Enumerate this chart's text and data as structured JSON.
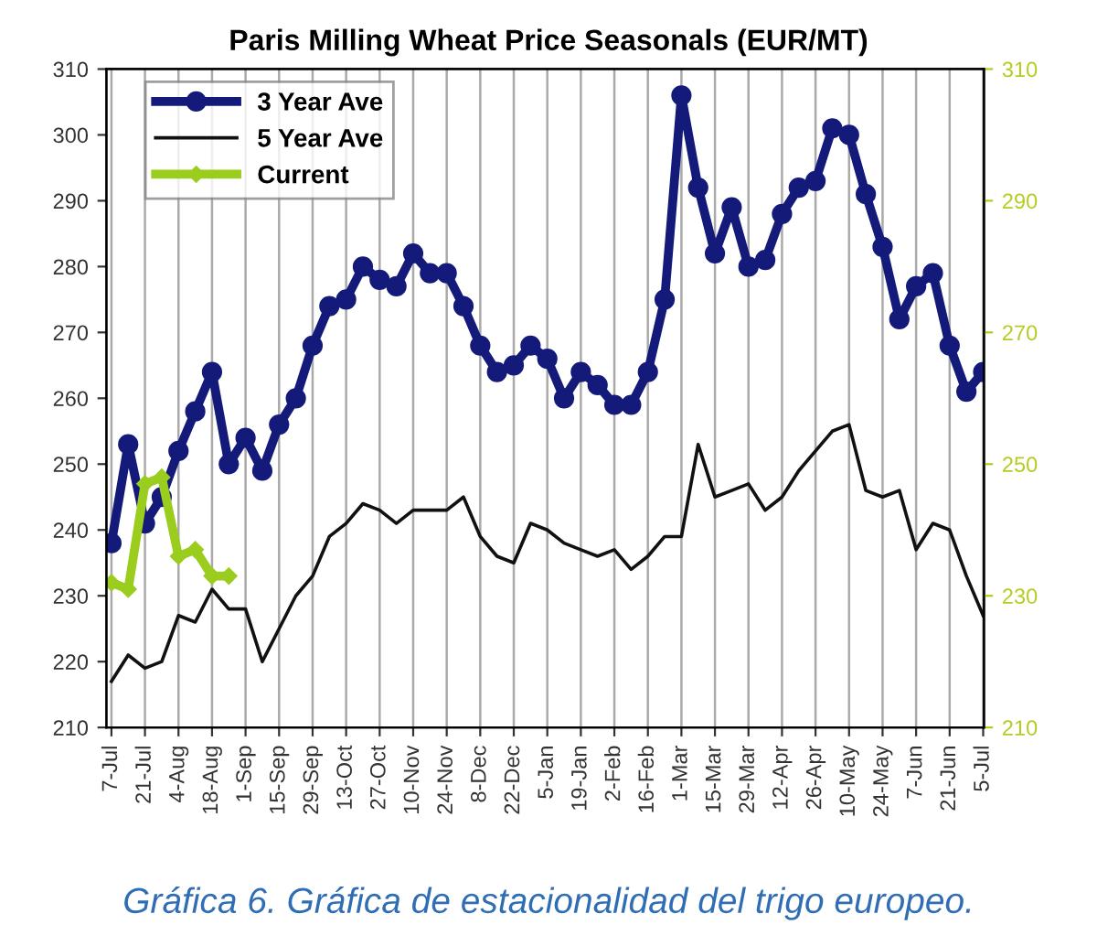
{
  "chart_data": {
    "type": "line",
    "title": "Paris Milling Wheat Price Seasonals (EUR/MT)",
    "categories": [
      "7-Jul",
      null,
      "21-Jul",
      null,
      "4-Aug",
      null,
      "18-Aug",
      null,
      "1-Sep",
      null,
      "15-Sep",
      null,
      "29-Sep",
      null,
      "13-Oct",
      null,
      "27-Oct",
      null,
      "10-Nov",
      null,
      "24-Nov",
      null,
      "8-Dec",
      null,
      "22-Dec",
      null,
      "5-Jan",
      null,
      "19-Jan",
      null,
      "2-Feb",
      null,
      "16-Feb",
      null,
      "1-Mar",
      null,
      "15-Mar",
      null,
      "29-Mar",
      null,
      "12-Apr",
      null,
      "26-Apr",
      null,
      "10-May",
      null,
      "24-May",
      null,
      "7-Jun",
      null,
      "21-Jun",
      null,
      "5-Jul"
    ],
    "series": [
      {
        "name": "3 Year Ave",
        "color": "#141a7a",
        "marker": "circle",
        "values": [
          238,
          253,
          241,
          245,
          252,
          258,
          264,
          250,
          254,
          249,
          256,
          260,
          268,
          274,
          275,
          280,
          278,
          277,
          282,
          279,
          279,
          274,
          268,
          264,
          265,
          268,
          266,
          260,
          264,
          262,
          259,
          259,
          264,
          275,
          306,
          292,
          282,
          289,
          280,
          281,
          288,
          292,
          293,
          301,
          300,
          291,
          283,
          272,
          277,
          279,
          268,
          261,
          264
        ]
      },
      {
        "name": "5 Year Ave",
        "color": "#111111",
        "marker": "none",
        "values": [
          217,
          221,
          219,
          220,
          227,
          226,
          231,
          228,
          228,
          220,
          225,
          230,
          233,
          239,
          241,
          244,
          243,
          241,
          243,
          243,
          243,
          245,
          239,
          236,
          235,
          241,
          240,
          238,
          237,
          236,
          237,
          234,
          236,
          239,
          239,
          253,
          245,
          246,
          247,
          243,
          245,
          249,
          252,
          255,
          256,
          246,
          245,
          246,
          237,
          241,
          240,
          233,
          227
        ]
      },
      {
        "name": "Current",
        "color": "#9acd1e",
        "marker": "diamond",
        "values": [
          232,
          231,
          247,
          248,
          236,
          237,
          233,
          233,
          null,
          null,
          null,
          null,
          null,
          null,
          null,
          null,
          null,
          null,
          null,
          null,
          null,
          null,
          null,
          null,
          null,
          null,
          null,
          null,
          null,
          null,
          null,
          null,
          null,
          null,
          null,
          null,
          null,
          null,
          null,
          null,
          null,
          null,
          null,
          null,
          null,
          null,
          null,
          null,
          null,
          null,
          null,
          null,
          null
        ]
      }
    ],
    "ylim": [
      210,
      310
    ],
    "yticks": [
      210,
      220,
      230,
      240,
      250,
      260,
      270,
      280,
      290,
      300,
      310
    ],
    "y2lim": [
      210,
      310
    ],
    "y2ticks": [
      210,
      230,
      250,
      270,
      290,
      310
    ],
    "grid": "x",
    "legend": "top left",
    "line_style": "solid",
    "annotations": [
      "Gráfica 6. Gráfica de estacionalidad del trigo europeo."
    ]
  }
}
